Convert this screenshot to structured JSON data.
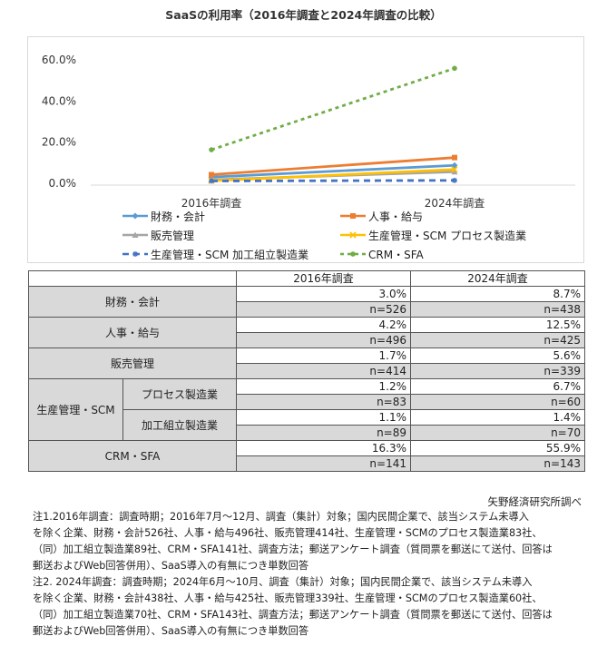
{
  "title": "SaaSの利用率（2016年調査と2024年調査の比較）",
  "chart_data": {
    "type": "line",
    "categories": [
      "2016年調査",
      "2024年調査"
    ],
    "yticks": [
      "0.0%",
      "20.0%",
      "40.0%",
      "60.0%"
    ],
    "ylim": [
      0,
      60
    ],
    "grid": false,
    "legend_position": "bottom",
    "series": [
      {
        "name": "財務・会計",
        "values": [
          3.0,
          8.7
        ],
        "color": "#5b9bd5",
        "dash": "solid",
        "marker": "diamond"
      },
      {
        "name": "人事・給与",
        "values": [
          4.2,
          12.5
        ],
        "color": "#ed7d31",
        "dash": "solid",
        "marker": "square"
      },
      {
        "name": "販売管理",
        "values": [
          1.7,
          5.6
        ],
        "color": "#a5a5a5",
        "dash": "solid",
        "marker": "triangle"
      },
      {
        "name": "生産管理・SCM プロセス製造業",
        "values": [
          1.2,
          6.7
        ],
        "color": "#ffc000",
        "dash": "solid",
        "marker": "x"
      },
      {
        "name": "生産管理・SCM 加工組立製造業",
        "values": [
          1.1,
          1.4
        ],
        "color": "#4472c4",
        "dash": "dashed",
        "marker": "star"
      },
      {
        "name": "CRM・SFA",
        "values": [
          16.3,
          55.9
        ],
        "color": "#70ad47",
        "dash": "dotted",
        "marker": "circle"
      }
    ]
  },
  "table": {
    "headers": [
      "2016年調査",
      "2024年調査"
    ],
    "rows": [
      {
        "label": "財務・会計",
        "pct": [
          "3.0%",
          "8.7%"
        ],
        "n": [
          "n=526",
          "n=438"
        ]
      },
      {
        "label": "人事・給与",
        "pct": [
          "4.2%",
          "12.5%"
        ],
        "n": [
          "n=496",
          "n=425"
        ]
      },
      {
        "label": "販売管理",
        "pct": [
          "1.7%",
          "5.6%"
        ],
        "n": [
          "n=414",
          "n=339"
        ]
      },
      {
        "group": "生産管理・SCM",
        "label": "プロセス製造業",
        "pct": [
          "1.2%",
          "6.7%"
        ],
        "n": [
          "n=83",
          "n=60"
        ]
      },
      {
        "group": "生産管理・SCM",
        "label": "加工組立製造業",
        "pct": [
          "1.1%",
          "1.4%"
        ],
        "n": [
          "n=89",
          "n=70"
        ]
      },
      {
        "label": "CRM・SFA",
        "pct": [
          "16.3%",
          "55.9%"
        ],
        "n": [
          "n=141",
          "n=143"
        ]
      }
    ]
  },
  "source": "矢野経済研究所調べ",
  "notes": [
    "注1.2016年調査：調査時期；2016年7月～12月、調査（集計）対象；国内民間企業で、該当システム未導入",
    "を除く企業、財務・会計526社、人事・給与496社、販売管理414社、生産管理・SCMのプロセス製造業83社、",
    "（同）加工組立製造業89社、CRM・SFA141社、調査方法；郵送アンケート調査（質問票を郵送にて送付、回答は",
    "郵送およびWeb回答併用）、SaaS導入の有無につき単数回答",
    "注2. 2024年調査：調査時期；2024年6月～10月、調査（集計）対象；国内民間企業で、該当システム未導入",
    "を除く企業、財務・会計438社、人事・給与425社、販売管理339社、生産管理・SCMのプロセス製造業60社、",
    "（同）加工組立製造業70社、CRM・SFA143社、調査方法；郵送アンケート調査（質問票を郵送にて送付、回答は",
    "郵送およびWeb回答併用）、SaaS導入の有無につき単数回答"
  ]
}
